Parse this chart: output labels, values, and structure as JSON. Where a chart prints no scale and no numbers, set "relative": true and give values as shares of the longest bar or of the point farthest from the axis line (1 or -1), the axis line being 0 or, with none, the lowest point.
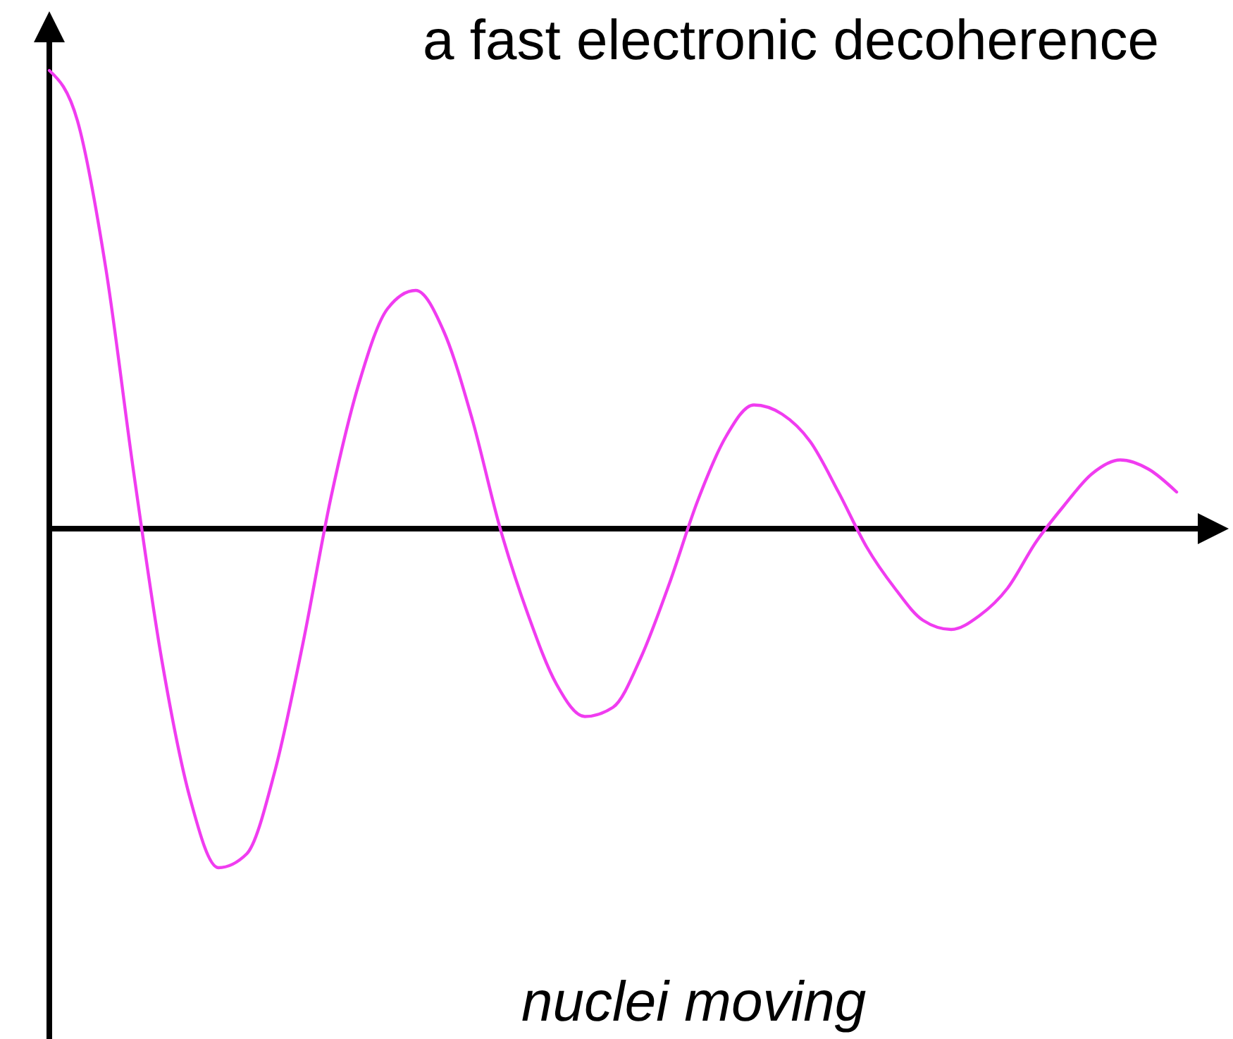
{
  "chart_data": {
    "type": "line",
    "title": "a fast electronic decoherence",
    "relative": true,
    "marker": "none",
    "line_style": "solid",
    "categories": [
      null,
      null,
      null,
      null,
      null,
      null,
      null,
      null,
      null,
      null,
      null,
      null,
      null,
      null,
      null,
      null,
      null,
      null,
      null,
      null,
      null,
      null,
      null,
      null,
      null,
      null,
      null,
      null,
      null,
      null,
      null,
      null,
      null,
      null,
      null,
      null,
      null,
      null,
      null,
      null,
      null
    ],
    "series": [
      {
        "color": "#f03cf0",
        "values": [
          1,
          0.89,
          0.57,
          0.12,
          -0.29,
          -0.59,
          -0.74,
          -0.71,
          -0.53,
          -0.25,
          0.07,
          0.32,
          0.48,
          0.52,
          0.43,
          0.24,
          0,
          -0.19,
          -0.34,
          -0.41,
          -0.39,
          -0.28,
          -0.12,
          0.06,
          0.2,
          0.27,
          0.25,
          0.19,
          0.08,
          -0.04,
          -0.13,
          -0.2,
          -0.22,
          -0.19,
          -0.13,
          -0.03,
          0.05,
          0.12,
          0.15,
          0.13,
          0.08
        ]
      }
    ],
    "annotations": [
      "nuclei moving"
    ]
  }
}
